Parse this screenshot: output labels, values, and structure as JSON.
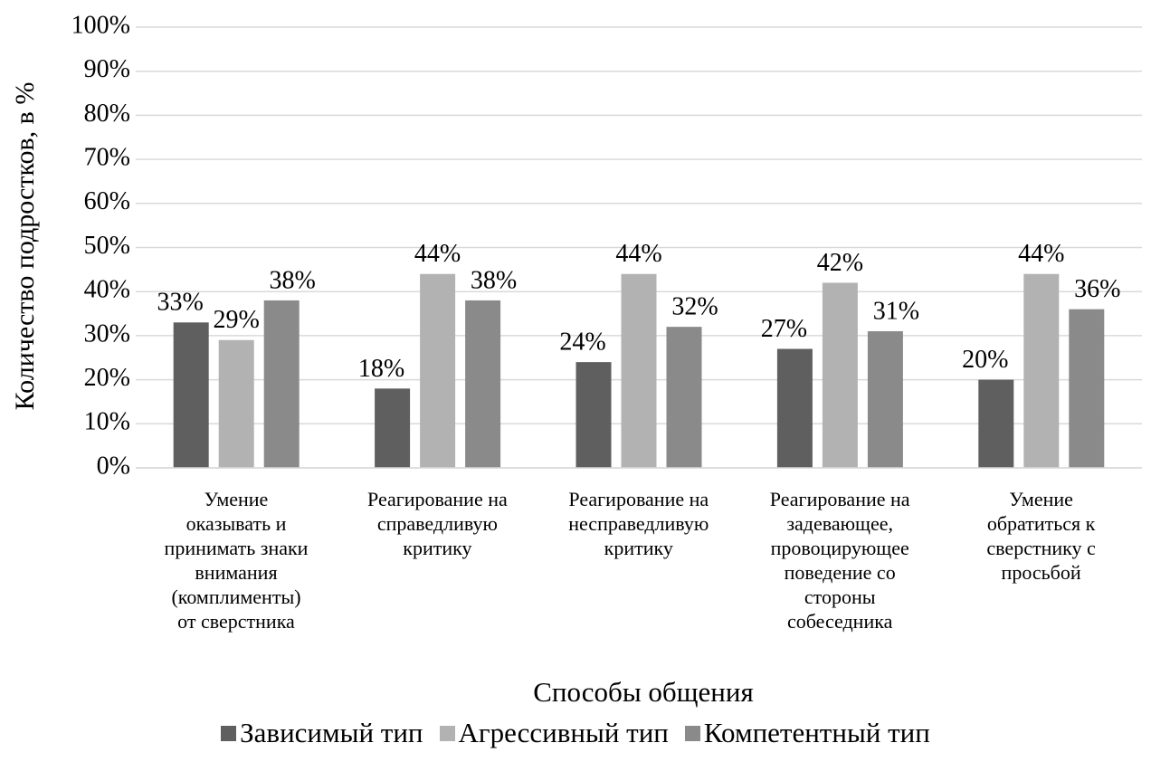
{
  "chart_data": {
    "type": "bar",
    "y_label": "Количество подростков, в %",
    "x_label": "Способы общения",
    "categories": [
      "Умение\nоказывать и\nпринимать знаки\nвнимания\n(комплименты)\nот сверстника",
      "Реагирование на\nсправедливую\nкритику",
      "Реагирование на\nнесправедливую\nкритику",
      "Реагирование на\nзадевающее,\nпровоцирующее\nповедение со\nстороны\nсобеседника",
      "Умение\nобратиться к\nсверстнику с\nпросьбой"
    ],
    "series": [
      {
        "name": "Зависимый тип",
        "color": "#5f5f5f",
        "values": [
          33,
          18,
          24,
          27,
          20
        ],
        "value_labels": [
          "33%",
          "18%",
          "24%",
          "27%",
          "20%"
        ]
      },
      {
        "name": "Агрессивный тип",
        "color": "#b2b2b2",
        "values": [
          29,
          44,
          44,
          42,
          44
        ],
        "value_labels": [
          "29%",
          "44%",
          "44%",
          "42%",
          "44%"
        ]
      },
      {
        "name": "Компетентный тип",
        "color": "#8a8a8a",
        "values": [
          38,
          38,
          32,
          31,
          36
        ],
        "value_labels": [
          "38%",
          "38%",
          "32%",
          "31%",
          "36%"
        ]
      }
    ],
    "ylim": [
      0,
      100
    ],
    "yticks": [
      {
        "value": 0,
        "label": "0%"
      },
      {
        "value": 10,
        "label": "10%"
      },
      {
        "value": 20,
        "label": "20%"
      },
      {
        "value": 30,
        "label": "30%"
      },
      {
        "value": 40,
        "label": "40%"
      },
      {
        "value": 50,
        "label": "50%"
      },
      {
        "value": 60,
        "label": "60%"
      },
      {
        "value": 70,
        "label": "70%"
      },
      {
        "value": 80,
        "label": "80%"
      },
      {
        "value": 90,
        "label": "90%"
      },
      {
        "value": 100,
        "label": "100%"
      }
    ],
    "grid": true,
    "legend": "bottom"
  }
}
